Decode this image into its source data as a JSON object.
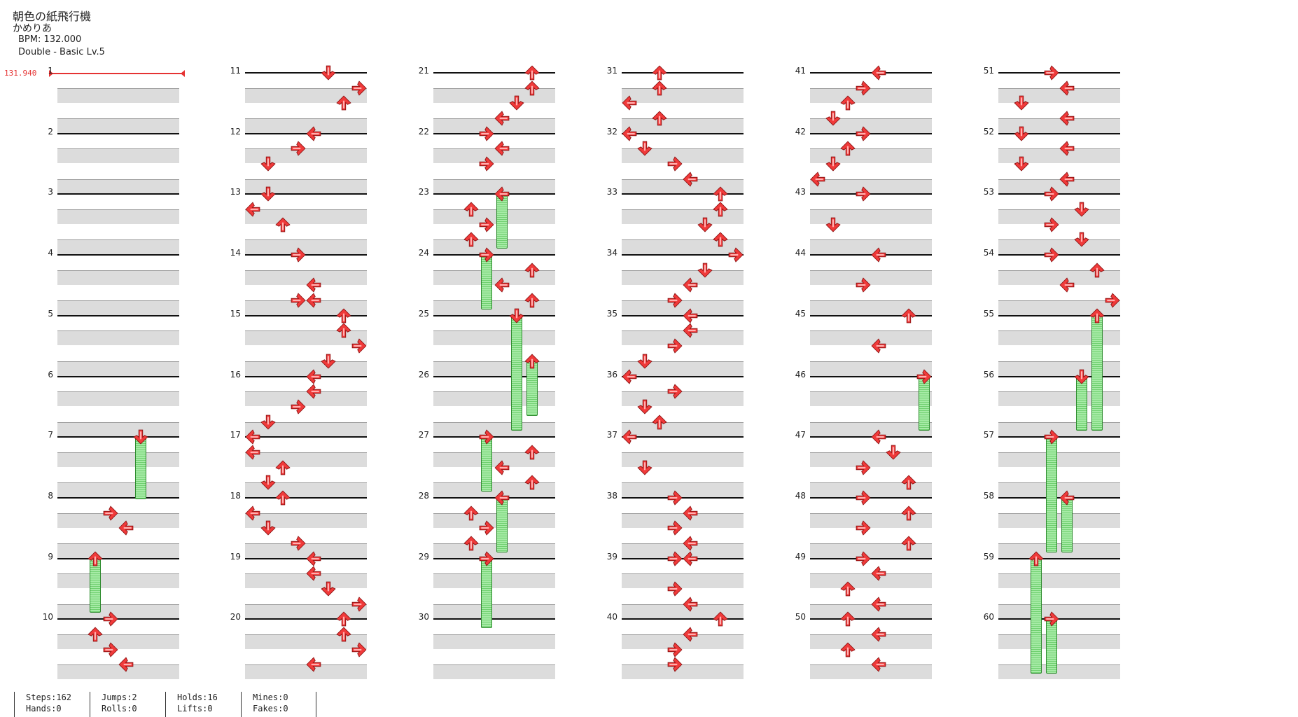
{
  "song": {
    "title": "朝色の紙飛行機",
    "artist": "かめりあ",
    "bpm_text": "BPM: 132.000",
    "difficulty_text": "Double - Basic  Lv.5",
    "bpm_marker": "131.940"
  },
  "colors": {
    "arrow": "#f03a3a",
    "hold": "#7fdc7f",
    "band": "#dcdcdc",
    "bpm_line": "#e53333"
  },
  "icons": {
    "left": "arrow-left-icon",
    "down": "arrow-down-icon",
    "up": "arrow-up-icon",
    "right": "arrow-right-icon"
  },
  "measures": [
    "1",
    "2",
    "3",
    "4",
    "5",
    "6",
    "7",
    "8",
    "9",
    "10",
    "11",
    "12",
    "13",
    "14",
    "15",
    "16",
    "17",
    "18",
    "19",
    "20",
    "21",
    "22",
    "23",
    "24",
    "25",
    "26",
    "27",
    "28",
    "29",
    "30",
    "31",
    "32",
    "33",
    "34",
    "35",
    "36",
    "37",
    "38",
    "39",
    "40",
    "41",
    "42",
    "43",
    "44",
    "45",
    "46",
    "47",
    "48",
    "49",
    "50",
    "51",
    "52",
    "53",
    "54",
    "55",
    "56",
    "57",
    "58",
    "59",
    "60"
  ],
  "notes": [
    {
      "m": 7,
      "b": 0,
      "l": 5,
      "dir": "down",
      "len": 4
    },
    {
      "m": 8,
      "b": 1,
      "l": 3,
      "dir": "right"
    },
    {
      "m": 8,
      "b": 2,
      "l": 4,
      "dir": "left"
    },
    {
      "m": 9,
      "b": 0,
      "l": 2,
      "dir": "up",
      "len": 3.5
    },
    {
      "m": 10,
      "b": 0,
      "l": 3,
      "dir": "right"
    },
    {
      "m": 10,
      "b": 1,
      "l": 2,
      "dir": "up"
    },
    {
      "m": 10,
      "b": 2,
      "l": 3,
      "dir": "right"
    },
    {
      "m": 10,
      "b": 3,
      "l": 4,
      "dir": "left"
    },
    {
      "m": 11,
      "b": 0,
      "l": 5,
      "dir": "down"
    },
    {
      "m": 11,
      "b": 1,
      "l": 7,
      "dir": "right"
    },
    {
      "m": 11,
      "b": 2,
      "l": 6,
      "dir": "up"
    },
    {
      "m": 12,
      "b": 0,
      "l": 4,
      "dir": "left"
    },
    {
      "m": 12,
      "b": 1,
      "l": 3,
      "dir": "right"
    },
    {
      "m": 12,
      "b": 2,
      "l": 1,
      "dir": "down"
    },
    {
      "m": 13,
      "b": 0,
      "l": 1,
      "dir": "down"
    },
    {
      "m": 13,
      "b": 1,
      "l": 0,
      "dir": "left"
    },
    {
      "m": 13,
      "b": 2,
      "l": 2,
      "dir": "up"
    },
    {
      "m": 14,
      "b": 0,
      "l": 3,
      "dir": "right"
    },
    {
      "m": 14,
      "b": 2,
      "l": 4,
      "dir": "left"
    },
    {
      "m": 14,
      "b": 3,
      "l": 3,
      "dir": "right"
    },
    {
      "m": 14,
      "b": 3,
      "l": 4,
      "dir": "left"
    },
    {
      "m": 15,
      "b": 0,
      "l": 6,
      "dir": "up"
    },
    {
      "m": 15,
      "b": 1,
      "l": 6,
      "dir": "up"
    },
    {
      "m": 15,
      "b": 2,
      "l": 7,
      "dir": "right"
    },
    {
      "m": 15,
      "b": 3,
      "l": 5,
      "dir": "down"
    },
    {
      "m": 16,
      "b": 0,
      "l": 4,
      "dir": "left"
    },
    {
      "m": 16,
      "b": 1,
      "l": 4,
      "dir": "left"
    },
    {
      "m": 16,
      "b": 2,
      "l": 3,
      "dir": "right"
    },
    {
      "m": 16,
      "b": 3,
      "l": 1,
      "dir": "down"
    },
    {
      "m": 17,
      "b": 0,
      "l": 0,
      "dir": "left"
    },
    {
      "m": 17,
      "b": 1,
      "l": 0,
      "dir": "left"
    },
    {
      "m": 17,
      "b": 2,
      "l": 2,
      "dir": "up"
    },
    {
      "m": 17,
      "b": 3,
      "l": 1,
      "dir": "down"
    },
    {
      "m": 18,
      "b": 0,
      "l": 2,
      "dir": "up"
    },
    {
      "m": 18,
      "b": 1,
      "l": 0,
      "dir": "left"
    },
    {
      "m": 18,
      "b": 2,
      "l": 1,
      "dir": "down"
    },
    {
      "m": 18,
      "b": 3,
      "l": 3,
      "dir": "right"
    },
    {
      "m": 19,
      "b": 0,
      "l": 4,
      "dir": "left"
    },
    {
      "m": 19,
      "b": 1,
      "l": 4,
      "dir": "left"
    },
    {
      "m": 19,
      "b": 2,
      "l": 5,
      "dir": "down"
    },
    {
      "m": 19,
      "b": 3,
      "l": 7,
      "dir": "right"
    },
    {
      "m": 20,
      "b": 0,
      "l": 6,
      "dir": "up"
    },
    {
      "m": 20,
      "b": 1,
      "l": 6,
      "dir": "up"
    },
    {
      "m": 20,
      "b": 2,
      "l": 7,
      "dir": "right"
    },
    {
      "m": 20,
      "b": 3,
      "l": 4,
      "dir": "left"
    },
    {
      "m": 21,
      "b": 0,
      "l": 6,
      "dir": "up"
    },
    {
      "m": 21,
      "b": 1,
      "l": 6,
      "dir": "up"
    },
    {
      "m": 21,
      "b": 2,
      "l": 5,
      "dir": "down"
    },
    {
      "m": 21,
      "b": 3,
      "l": 4,
      "dir": "left"
    },
    {
      "m": 22,
      "b": 0,
      "l": 3,
      "dir": "right"
    },
    {
      "m": 22,
      "b": 1,
      "l": 4,
      "dir": "left"
    },
    {
      "m": 22,
      "b": 2,
      "l": 3,
      "dir": "right"
    },
    {
      "m": 23,
      "b": 0,
      "l": 4,
      "dir": "left",
      "len": 3.5
    },
    {
      "m": 23,
      "b": 1,
      "l": 2,
      "dir": "up"
    },
    {
      "m": 23,
      "b": 2,
      "l": 3,
      "dir": "right"
    },
    {
      "m": 23,
      "b": 3,
      "l": 2,
      "dir": "up"
    },
    {
      "m": 24,
      "b": 0,
      "l": 3,
      "dir": "right",
      "len": 3.5
    },
    {
      "m": 24,
      "b": 1,
      "l": 6,
      "dir": "up"
    },
    {
      "m": 24,
      "b": 2,
      "l": 4,
      "dir": "left"
    },
    {
      "m": 24,
      "b": 3,
      "l": 6,
      "dir": "up"
    },
    {
      "m": 25,
      "b": 0,
      "l": 5,
      "dir": "down",
      "len": 7.5
    },
    {
      "m": 25,
      "b": 3,
      "l": 6,
      "dir": "up",
      "len": 3.5
    },
    {
      "m": 27,
      "b": 0,
      "l": 3,
      "dir": "right",
      "len": 3.5
    },
    {
      "m": 27,
      "b": 1,
      "l": 6,
      "dir": "up"
    },
    {
      "m": 27,
      "b": 2,
      "l": 4,
      "dir": "left"
    },
    {
      "m": 27,
      "b": 3,
      "l": 6,
      "dir": "up"
    },
    {
      "m": 28,
      "b": 0,
      "l": 4,
      "dir": "left",
      "len": 3.5
    },
    {
      "m": 28,
      "b": 1,
      "l": 2,
      "dir": "up"
    },
    {
      "m": 28,
      "b": 2,
      "l": 3,
      "dir": "right"
    },
    {
      "m": 28,
      "b": 3,
      "l": 2,
      "dir": "up"
    },
    {
      "m": 29,
      "b": 0,
      "l": 3,
      "dir": "right",
      "len": 4.5
    },
    {
      "m": 31,
      "b": 0,
      "l": 2,
      "dir": "up"
    },
    {
      "m": 31,
      "b": 1,
      "l": 2,
      "dir": "up"
    },
    {
      "m": 31,
      "b": 2,
      "l": 0,
      "dir": "left"
    },
    {
      "m": 31,
      "b": 3,
      "l": 2,
      "dir": "up"
    },
    {
      "m": 32,
      "b": 0,
      "l": 0,
      "dir": "left"
    },
    {
      "m": 32,
      "b": 1,
      "l": 1,
      "dir": "down"
    },
    {
      "m": 32,
      "b": 2,
      "l": 3,
      "dir": "right"
    },
    {
      "m": 32,
      "b": 3,
      "l": 4,
      "dir": "left"
    },
    {
      "m": 33,
      "b": 0,
      "l": 6,
      "dir": "up"
    },
    {
      "m": 33,
      "b": 1,
      "l": 6,
      "dir": "up"
    },
    {
      "m": 33,
      "b": 2,
      "l": 5,
      "dir": "down"
    },
    {
      "m": 33,
      "b": 3,
      "l": 6,
      "dir": "up"
    },
    {
      "m": 34,
      "b": 0,
      "l": 7,
      "dir": "right"
    },
    {
      "m": 34,
      "b": 1,
      "l": 5,
      "dir": "down"
    },
    {
      "m": 34,
      "b": 2,
      "l": 4,
      "dir": "left"
    },
    {
      "m": 34,
      "b": 3,
      "l": 3,
      "dir": "right"
    },
    {
      "m": 35,
      "b": 0,
      "l": 4,
      "dir": "left"
    },
    {
      "m": 35,
      "b": 1,
      "l": 4,
      "dir": "left"
    },
    {
      "m": 35,
      "b": 2,
      "l": 3,
      "dir": "right"
    },
    {
      "m": 35,
      "b": 3,
      "l": 1,
      "dir": "down"
    },
    {
      "m": 36,
      "b": 0,
      "l": 0,
      "dir": "left"
    },
    {
      "m": 36,
      "b": 1,
      "l": 3,
      "dir": "right"
    },
    {
      "m": 36,
      "b": 2,
      "l": 1,
      "dir": "down"
    },
    {
      "m": 36,
      "b": 3,
      "l": 2,
      "dir": "up"
    },
    {
      "m": 37,
      "b": 0,
      "l": 0,
      "dir": "left"
    },
    {
      "m": 37,
      "b": 2,
      "l": 1,
      "dir": "down"
    },
    {
      "m": 38,
      "b": 0,
      "l": 3,
      "dir": "right"
    },
    {
      "m": 38,
      "b": 1,
      "l": 4,
      "dir": "left"
    },
    {
      "m": 38,
      "b": 2,
      "l": 3,
      "dir": "right"
    },
    {
      "m": 38,
      "b": 3,
      "l": 4,
      "dir": "left"
    },
    {
      "m": 39,
      "b": 0,
      "l": 3,
      "dir": "right"
    },
    {
      "m": 39,
      "b": 0,
      "l": 4,
      "dir": "left"
    },
    {
      "m": 39,
      "b": 2,
      "l": 3,
      "dir": "right"
    },
    {
      "m": 39,
      "b": 3,
      "l": 4,
      "dir": "left"
    },
    {
      "m": 40,
      "b": 0,
      "l": 6,
      "dir": "up"
    },
    {
      "m": 40,
      "b": 1,
      "l": 4,
      "dir": "left"
    },
    {
      "m": 40,
      "b": 2,
      "l": 3,
      "dir": "right"
    },
    {
      "m": 40,
      "b": 3,
      "l": 3,
      "dir": "right"
    },
    {
      "m": 41,
      "b": 0,
      "l": 4,
      "dir": "left"
    },
    {
      "m": 41,
      "b": 1,
      "l": 3,
      "dir": "right"
    },
    {
      "m": 41,
      "b": 2,
      "l": 2,
      "dir": "up"
    },
    {
      "m": 41,
      "b": 3,
      "l": 1,
      "dir": "down"
    },
    {
      "m": 42,
      "b": 0,
      "l": 3,
      "dir": "right"
    },
    {
      "m": 42,
      "b": 1,
      "l": 2,
      "dir": "up"
    },
    {
      "m": 42,
      "b": 2,
      "l": 1,
      "dir": "down"
    },
    {
      "m": 42,
      "b": 3,
      "l": 0,
      "dir": "left"
    },
    {
      "m": 43,
      "b": 0,
      "l": 3,
      "dir": "right"
    },
    {
      "m": 43,
      "b": 2,
      "l": 1,
      "dir": "down"
    },
    {
      "m": 44,
      "b": 0,
      "l": 4,
      "dir": "left"
    },
    {
      "m": 44,
      "b": 2,
      "l": 3,
      "dir": "right"
    },
    {
      "m": 45,
      "b": 0,
      "l": 6,
      "dir": "up"
    },
    {
      "m": 45,
      "b": 2,
      "l": 4,
      "dir": "left"
    },
    {
      "m": 46,
      "b": 0,
      "l": 7,
      "dir": "right",
      "len": 3.5
    },
    {
      "m": 47,
      "b": 0,
      "l": 4,
      "dir": "left"
    },
    {
      "m": 47,
      "b": 1,
      "l": 5,
      "dir": "down"
    },
    {
      "m": 47,
      "b": 2,
      "l": 3,
      "dir": "right"
    },
    {
      "m": 47,
      "b": 3,
      "l": 6,
      "dir": "up"
    },
    {
      "m": 48,
      "b": 0,
      "l": 3,
      "dir": "right"
    },
    {
      "m": 48,
      "b": 1,
      "l": 6,
      "dir": "up"
    },
    {
      "m": 48,
      "b": 2,
      "l": 3,
      "dir": "right"
    },
    {
      "m": 48,
      "b": 3,
      "l": 6,
      "dir": "up"
    },
    {
      "m": 49,
      "b": 0,
      "l": 3,
      "dir": "right"
    },
    {
      "m": 49,
      "b": 1,
      "l": 4,
      "dir": "left"
    },
    {
      "m": 49,
      "b": 2,
      "l": 2,
      "dir": "up"
    },
    {
      "m": 49,
      "b": 3,
      "l": 4,
      "dir": "left"
    },
    {
      "m": 50,
      "b": 0,
      "l": 2,
      "dir": "up"
    },
    {
      "m": 50,
      "b": 1,
      "l": 4,
      "dir": "left"
    },
    {
      "m": 50,
      "b": 2,
      "l": 2,
      "dir": "up"
    },
    {
      "m": 50,
      "b": 3,
      "l": 4,
      "dir": "left"
    },
    {
      "m": 51,
      "b": 0,
      "l": 3,
      "dir": "right"
    },
    {
      "m": 51,
      "b": 1,
      "l": 4,
      "dir": "left"
    },
    {
      "m": 51,
      "b": 2,
      "l": 1,
      "dir": "down"
    },
    {
      "m": 51,
      "b": 3,
      "l": 4,
      "dir": "left"
    },
    {
      "m": 52,
      "b": 0,
      "l": 1,
      "dir": "down"
    },
    {
      "m": 52,
      "b": 1,
      "l": 4,
      "dir": "left"
    },
    {
      "m": 52,
      "b": 2,
      "l": 1,
      "dir": "down"
    },
    {
      "m": 52,
      "b": 3,
      "l": 4,
      "dir": "left"
    },
    {
      "m": 53,
      "b": 0,
      "l": 3,
      "dir": "right"
    },
    {
      "m": 53,
      "b": 1,
      "l": 5,
      "dir": "down"
    },
    {
      "m": 53,
      "b": 2,
      "l": 3,
      "dir": "right"
    },
    {
      "m": 53,
      "b": 3,
      "l": 5,
      "dir": "down"
    },
    {
      "m": 54,
      "b": 0,
      "l": 3,
      "dir": "right"
    },
    {
      "m": 54,
      "b": 1,
      "l": 6,
      "dir": "up"
    },
    {
      "m": 54,
      "b": 2,
      "l": 4,
      "dir": "left"
    },
    {
      "m": 54,
      "b": 3,
      "l": 7,
      "dir": "right"
    },
    {
      "m": 55,
      "b": 0,
      "l": 6,
      "dir": "up",
      "len": 7.5
    },
    {
      "m": 56,
      "b": 0,
      "l": 5,
      "dir": "down",
      "len": 3.5
    },
    {
      "m": 57,
      "b": 0,
      "l": 3,
      "dir": "right",
      "len": 7.5
    },
    {
      "m": 58,
      "b": 0,
      "l": 4,
      "dir": "left",
      "len": 3.5
    },
    {
      "m": 59,
      "b": 0,
      "l": 2,
      "dir": "up",
      "len": 7.5
    },
    {
      "m": 60,
      "b": 0,
      "l": 3,
      "dir": "right",
      "len": 3.5
    }
  ],
  "stats": [
    {
      "line1": "Steps:162",
      "line2": "Hands:0"
    },
    {
      "line1": "Jumps:2",
      "line2": "Rolls:0"
    },
    {
      "line1": "Holds:16",
      "line2": "Lifts:0"
    },
    {
      "line1": "Mines:0",
      "line2": "Fakes:0"
    }
  ]
}
